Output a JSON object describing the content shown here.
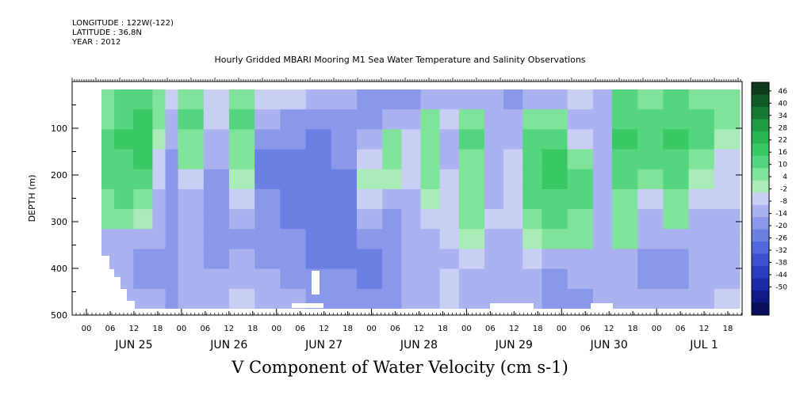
{
  "meta": {
    "longitude": "LONGITUDE : 122W(-122)",
    "latitude": "LATITUDE : 36.8N",
    "year": "YEAR : 2012"
  },
  "title": "Hourly Gridded MBARI Mooring M1 Sea Water Temperature and Salinity Observations",
  "chart_data": {
    "type": "heatmap",
    "title": "Hourly Gridded MBARI Mooring M1 Sea Water Temperature and Salinity Observations",
    "xlabel": "V Component of Water Velocity (cm s-1)",
    "ylabel": "DEPTH (m)",
    "y_ticks": [
      100,
      200,
      300,
      400,
      500
    ],
    "y_tick_labels": [
      "100",
      "200",
      "300",
      "400",
      "500"
    ],
    "ylim": [
      500,
      0
    ],
    "x_hour_labels": [
      "00",
      "06",
      "12",
      "18",
      "00",
      "06",
      "12",
      "18",
      "00",
      "06",
      "12",
      "18",
      "00",
      "06",
      "12",
      "18",
      "00",
      "06",
      "12",
      "18",
      "00",
      "06",
      "12",
      "18",
      "00",
      "06",
      "12",
      "18"
    ],
    "x_day_labels": [
      "JUN 25",
      "JUN 26",
      "JUN 27",
      "JUN 28",
      "JUN 29",
      "JUN 30",
      "JUL  1"
    ],
    "colorbar_labels": [
      "46",
      "40",
      "34",
      "28",
      "22",
      "16",
      "10",
      "4",
      "-2",
      "-8",
      "-14",
      "-20",
      "-26",
      "-32",
      "-38",
      "-44",
      "-50"
    ],
    "colorbar_colors": [
      "#0c3a1a",
      "#125a26",
      "#177833",
      "#1f9a42",
      "#2ab652",
      "#39c865",
      "#55d57d",
      "#7fe39a",
      "#aaecb8",
      "#c9cff4",
      "#aab3ef",
      "#8a98e9",
      "#6c80e3",
      "#4f67db",
      "#3b52cf",
      "#2a3dbf",
      "#1c2aa6",
      "#101a86",
      "#080f5e"
    ],
    "colorbar_range": [
      -50,
      50
    ],
    "colorbar_step": 6,
    "columns": [
      {
        "x_end": 0.02,
        "v": [
          8,
          6,
          10,
          10,
          9,
          8,
          6,
          -10,
          -12,
          -12,
          -12
        ]
      },
      {
        "x_end": 0.05,
        "v": [
          10,
          14,
          16,
          14,
          12,
          10,
          4,
          -12,
          -14,
          -14,
          -14
        ]
      },
      {
        "x_end": 0.08,
        "v": [
          10,
          16,
          18,
          16,
          12,
          8,
          2,
          -12,
          -16,
          -16,
          -14
        ]
      },
      {
        "x_end": 0.1,
        "v": [
          6,
          4,
          2,
          -4,
          -8,
          -10,
          -12,
          -14,
          -16,
          -16,
          -14
        ]
      },
      {
        "x_end": 0.12,
        "v": [
          -6,
          -10,
          -14,
          -18,
          -20,
          -20,
          -20,
          -20,
          -20,
          -18,
          -16
        ]
      },
      {
        "x_end": 0.16,
        "v": [
          6,
          10,
          8,
          4,
          -4,
          -10,
          -14,
          -14,
          -14,
          -12,
          -10
        ]
      },
      {
        "x_end": 0.2,
        "v": [
          -4,
          -8,
          -12,
          -14,
          -16,
          -18,
          -18,
          -18,
          -16,
          -14,
          -10
        ]
      },
      {
        "x_end": 0.24,
        "v": [
          4,
          10,
          8,
          6,
          2,
          -8,
          -14,
          -16,
          -14,
          -10,
          -6
        ]
      },
      {
        "x_end": 0.28,
        "v": [
          -8,
          -14,
          -18,
          -22,
          -22,
          -20,
          -20,
          -18,
          -16,
          -14,
          -10
        ]
      },
      {
        "x_end": 0.32,
        "v": [
          -8,
          -16,
          -20,
          -22,
          -24,
          -22,
          -22,
          -20,
          -18,
          -16,
          -14
        ]
      },
      {
        "x_end": 0.36,
        "v": [
          -10,
          -18,
          -22,
          -24,
          -26,
          -24,
          -24,
          -22,
          -22,
          -20,
          -16
        ]
      },
      {
        "x_end": 0.4,
        "v": [
          -12,
          -18,
          -20,
          -20,
          -22,
          -22,
          -24,
          -24,
          -22,
          -20,
          -18
        ]
      },
      {
        "x_end": 0.44,
        "v": [
          -16,
          -16,
          -10,
          -6,
          -2,
          -8,
          -14,
          -20,
          -22,
          -22,
          -20
        ]
      },
      {
        "x_end": 0.47,
        "v": [
          -18,
          -12,
          6,
          8,
          2,
          -10,
          -18,
          -20,
          -20,
          -18,
          -16
        ]
      },
      {
        "x_end": 0.5,
        "v": [
          -16,
          -10,
          -6,
          -4,
          -8,
          -12,
          -14,
          -14,
          -14,
          -12,
          -12
        ]
      },
      {
        "x_end": 0.53,
        "v": [
          -12,
          6,
          4,
          8,
          4,
          2,
          -8,
          -12,
          -12,
          -10,
          -10
        ]
      },
      {
        "x_end": 0.56,
        "v": [
          -12,
          -8,
          -10,
          -12,
          -8,
          -4,
          -6,
          -8,
          -10,
          -8,
          -8
        ]
      },
      {
        "x_end": 0.6,
        "v": [
          -14,
          4,
          12,
          8,
          4,
          6,
          4,
          2,
          -8,
          -10,
          -10
        ]
      },
      {
        "x_end": 0.63,
        "v": [
          -14,
          -10,
          -12,
          -14,
          -12,
          -10,
          -8,
          -10,
          -12,
          -12,
          -12
        ]
      },
      {
        "x_end": 0.66,
        "v": [
          -16,
          -12,
          -10,
          -8,
          -8,
          -6,
          -8,
          -10,
          -12,
          -14,
          -14
        ]
      },
      {
        "x_end": 0.69,
        "v": [
          -14,
          4,
          10,
          14,
          12,
          10,
          6,
          2,
          -8,
          -12,
          -14
        ]
      },
      {
        "x_end": 0.73,
        "v": [
          -10,
          6,
          12,
          16,
          16,
          14,
          10,
          4,
          -10,
          -16,
          -18
        ]
      },
      {
        "x_end": 0.77,
        "v": [
          -8,
          -12,
          -8,
          6,
          10,
          10,
          8,
          4,
          -10,
          -14,
          -16
        ]
      },
      {
        "x_end": 0.8,
        "v": [
          -10,
          -14,
          -14,
          -12,
          -10,
          -12,
          -12,
          -14,
          -14,
          -14,
          -12
        ]
      },
      {
        "x_end": 0.84,
        "v": [
          10,
          14,
          18,
          14,
          10,
          8,
          6,
          4,
          -10,
          -12,
          -10
        ]
      },
      {
        "x_end": 0.88,
        "v": [
          8,
          12,
          14,
          10,
          6,
          -4,
          -10,
          -14,
          -18,
          -16,
          -12
        ]
      },
      {
        "x_end": 0.92,
        "v": [
          10,
          14,
          16,
          14,
          12,
          8,
          4,
          -10,
          -16,
          -16,
          -14
        ]
      },
      {
        "x_end": 0.96,
        "v": [
          8,
          12,
          10,
          6,
          2,
          -8,
          -12,
          -14,
          -14,
          -12,
          -10
        ]
      },
      {
        "x_end": 1.0,
        "v": [
          6,
          4,
          2,
          -4,
          -6,
          -8,
          -10,
          -12,
          -12,
          -10,
          -8
        ]
      }
    ]
  }
}
